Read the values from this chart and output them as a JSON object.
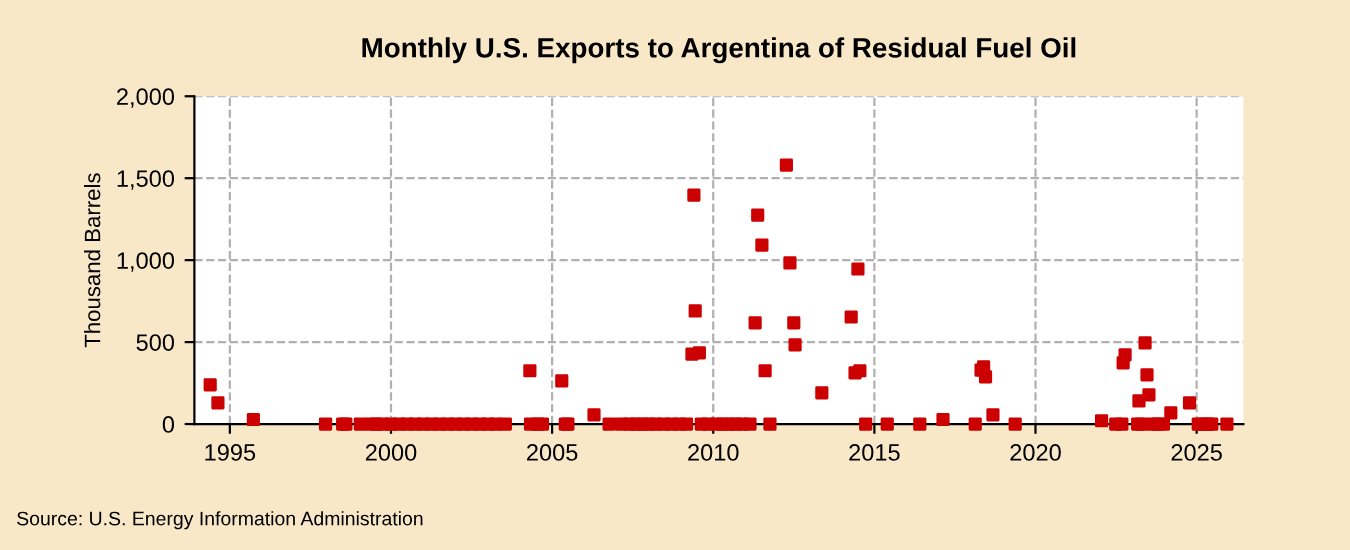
{
  "chart_data": {
    "type": "scatter",
    "title": "Monthly U.S. Exports to Argentina of Residual Fuel Oil",
    "ylabel": "Thousand Barrels",
    "series": [
      {
        "color": "#cc0000",
        "x": [
          1994.39,
          1994.63,
          1995.73,
          1997.97,
          1998.5,
          1998.6,
          1999.05,
          1999.4,
          1999.55,
          1999.75,
          2000.0,
          2000.25,
          2000.5,
          2000.75,
          2001.0,
          2001.25,
          2001.5,
          2001.75,
          2002.0,
          2002.25,
          2002.5,
          2002.75,
          2003.0,
          2003.25,
          2003.55,
          2004.31,
          2004.33,
          2004.55,
          2004.7,
          2005.3,
          2005.41,
          2005.49,
          2006.3,
          2006.77,
          2007.15,
          2007.4,
          2007.6,
          2007.8,
          2008.0,
          2008.2,
          2008.45,
          2008.7,
          2008.95,
          2009.17,
          2009.34,
          2009.4,
          2009.44,
          2009.57,
          2009.63,
          2009.85,
          2010.1,
          2010.3,
          2010.5,
          2010.7,
          2010.9,
          2011.14,
          2011.3,
          2011.38,
          2011.51,
          2011.61,
          2011.76,
          2012.27,
          2012.38,
          2012.5,
          2012.54,
          2013.37,
          2014.28,
          2014.4,
          2014.49,
          2014.55,
          2014.73,
          2015.4,
          2016.41,
          2017.13,
          2018.13,
          2018.31,
          2018.39,
          2018.45,
          2018.68,
          2019.37,
          2022.05,
          2022.49,
          2022.68,
          2022.72,
          2022.78,
          2023.17,
          2023.21,
          2023.29,
          2023.4,
          2023.46,
          2023.52,
          2023.65,
          2023.79,
          2023.97,
          2024.2,
          2024.78,
          2025.05,
          2025.2,
          2025.35,
          2025.47,
          2025.94
        ],
        "values": [
          239,
          129,
          28,
          0,
          0,
          0,
          0,
          0,
          0,
          0,
          0,
          0,
          0,
          0,
          0,
          0,
          0,
          0,
          0,
          0,
          0,
          0,
          0,
          0,
          0,
          325,
          0,
          0,
          0,
          263,
          0,
          0,
          56,
          0,
          0,
          0,
          0,
          0,
          0,
          0,
          0,
          0,
          0,
          0,
          427,
          1397,
          690,
          434,
          0,
          0,
          0,
          0,
          0,
          0,
          0,
          0,
          617,
          1275,
          1092,
          325,
          0,
          1580,
          983,
          617,
          483,
          190,
          653,
          312,
          946,
          325,
          0,
          0,
          0,
          28,
          0,
          329,
          349,
          288,
          56,
          0,
          20,
          0,
          0,
          373,
          422,
          0,
          141,
          0,
          495,
          300,
          178,
          0,
          0,
          0,
          68,
          129,
          0,
          0,
          0,
          0,
          0
        ]
      }
    ],
    "xlim": [
      1993.9,
      2026.45
    ],
    "xticks": [
      1995,
      2000,
      2005,
      2010,
      2015,
      2020,
      2025
    ],
    "ylim": [
      0,
      2000
    ],
    "yticks": [
      0,
      {
        "value": 500,
        "label": "500"
      },
      {
        "value": 1000,
        "label": "1,000"
      },
      {
        "value": 1500,
        "label": "1,500"
      },
      {
        "value": 2000,
        "label": "2,000"
      }
    ],
    "grid": true,
    "marker": "square",
    "legend": false,
    "annotations": [
      "Source: U.S. Energy Information Administration"
    ]
  }
}
